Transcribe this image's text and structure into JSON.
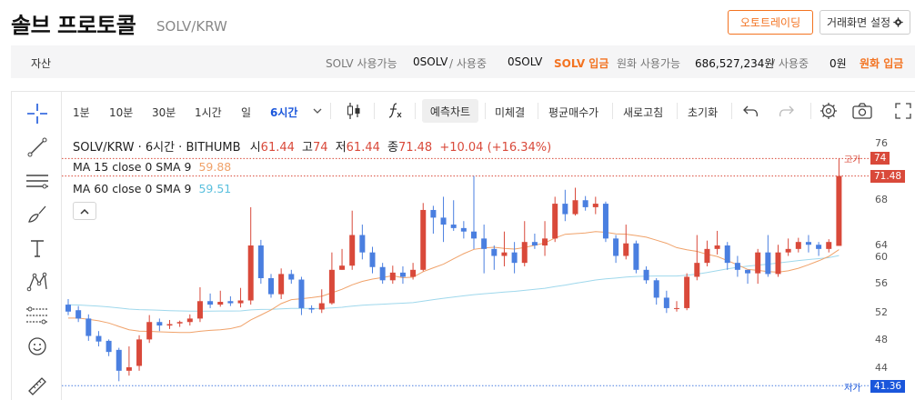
{
  "header": {
    "coin_name": "솔브 프로토콜",
    "pair": "SOLV/KRW",
    "auto_trade_label": "오토트레이딩",
    "settings_label": "거래화면 설정"
  },
  "asset_bar": {
    "label": "자산",
    "solv_available_label": "SOLV 사용가능",
    "solv_available": "0SOLV",
    "solv_in_use_label": "/ 사용중",
    "solv_in_use": "0SOLV",
    "solv_deposit": "SOLV 입금",
    "krw_available_label": "원화 사용가능",
    "krw_available": "686,527,234원",
    "krw_in_use_label": "/ 사용중",
    "krw_in_use": "0원",
    "krw_deposit": "원화 입금"
  },
  "toolbar": {
    "intervals": [
      "1분",
      "10분",
      "30분",
      "1시간",
      "일",
      "6시간"
    ],
    "active_interval": "6시간",
    "forecast": "예측차트",
    "unfilled": "미체결",
    "avg_buy": "평균매수가",
    "refresh": "새로고침",
    "reset": "초기화"
  },
  "legend": {
    "title": "SOLV/KRW · 6시간 · BITHUMB",
    "open_label": "시",
    "open": "61.44",
    "high_label": "고",
    "high": "74",
    "low_label": "저",
    "low": "61.44",
    "close_label": "종",
    "close": "71.48",
    "change": "+10.04 (+16.34%)",
    "ma15_label": "MA 15 close 0 SMA 9",
    "ma15_value": "59.88",
    "ma60_label": "MA 60 close 0 SMA 9",
    "ma60_value": "59.51"
  },
  "price_axis": {
    "ticks": [
      "76",
      "72",
      "68",
      "64",
      "60",
      "56",
      "52",
      "48",
      "44"
    ],
    "high_tag": "고가",
    "high_value": "74",
    "current_value": "71.48",
    "low_tag": "저가",
    "low_value": "41.36"
  },
  "colors": {
    "up": "#d9493a",
    "down": "#4a7fe0",
    "ma15": "#f0a26a",
    "ma60": "#9fd8ec",
    "accent": "#f37321",
    "active": "#1a56db"
  },
  "chart_data": {
    "type": "candlestick",
    "ylim": [
      40.5,
      78
    ],
    "candles": [
      [
        53,
        52,
        53.8,
        51.5
      ],
      [
        52.2,
        51,
        52.8,
        50.5
      ],
      [
        51,
        48.5,
        51.6,
        47.8
      ],
      [
        48.5,
        47.7,
        49.2,
        47
      ],
      [
        47.8,
        46.2,
        48,
        45.6
      ],
      [
        46.5,
        43.5,
        46.8,
        42
      ],
      [
        43.5,
        44,
        47,
        42.8
      ],
      [
        44.2,
        48,
        48.6,
        43.5
      ],
      [
        48,
        50.5,
        51.5,
        47.5
      ],
      [
        50.5,
        50,
        51,
        49.2
      ],
      [
        50,
        50.2,
        50.8,
        49.5
      ],
      [
        50.3,
        50.5,
        50.7,
        49.8
      ],
      [
        50.5,
        51,
        51.6,
        50
      ],
      [
        51,
        53.5,
        55.5,
        50.5
      ],
      [
        53.5,
        53,
        54.6,
        52.5
      ],
      [
        53,
        53.4,
        55,
        52.7
      ],
      [
        53.5,
        53.2,
        54.2,
        52.8
      ],
      [
        53.2,
        53.6,
        55.4,
        52.6
      ],
      [
        53.6,
        61.5,
        67,
        53
      ],
      [
        61.5,
        56.8,
        62.3,
        56
      ],
      [
        56.8,
        54.5,
        57.4,
        54
      ],
      [
        54.5,
        57.4,
        58.2,
        53.8
      ],
      [
        57.4,
        56.6,
        58,
        56
      ],
      [
        56.6,
        52.5,
        57,
        51.5
      ],
      [
        52.5,
        52.3,
        52.9,
        51.8
      ],
      [
        52.3,
        53.2,
        55.2,
        51.8
      ],
      [
        53.2,
        58,
        60.5,
        53
      ],
      [
        58,
        58.6,
        61,
        58
      ],
      [
        58.6,
        63,
        66.5,
        58
      ],
      [
        63,
        60.5,
        64.5,
        59.5
      ],
      [
        60.5,
        58.4,
        61.3,
        57.5
      ],
      [
        58.4,
        56.5,
        59,
        56
      ],
      [
        56.5,
        57.6,
        58.6,
        56
      ],
      [
        57.6,
        57,
        58.5,
        56
      ],
      [
        57,
        58,
        59,
        56.6
      ],
      [
        58,
        66.6,
        67.6,
        57.8
      ],
      [
        66.6,
        65.5,
        67.2,
        63.2
      ],
      [
        65.5,
        64.5,
        68.5,
        62
      ],
      [
        64.5,
        64,
        68,
        63.6
      ],
      [
        64,
        63.5,
        65,
        62.5
      ],
      [
        63.5,
        62.5,
        71.5,
        61
      ],
      [
        62.5,
        61,
        64.5,
        57.5
      ],
      [
        61,
        60,
        61.5,
        58
      ],
      [
        60,
        60.5,
        63.5,
        58.5
      ],
      [
        60.5,
        59,
        62,
        57.5
      ],
      [
        59,
        62,
        65,
        58.5
      ],
      [
        62,
        61.5,
        63.2,
        61
      ],
      [
        61.5,
        62.5,
        65,
        60
      ],
      [
        62.5,
        67.5,
        68.5,
        62
      ],
      [
        67.5,
        66,
        69.5,
        65
      ],
      [
        66,
        68,
        69.8,
        65.8
      ],
      [
        68,
        67,
        68.6,
        66.5
      ],
      [
        67,
        67.5,
        68.5,
        66
      ],
      [
        67.5,
        62.5,
        67.8,
        62
      ],
      [
        62.5,
        60,
        63,
        59
      ],
      [
        60,
        61.8,
        64.5,
        59.5
      ],
      [
        61.8,
        58,
        62.2,
        57.5
      ],
      [
        58,
        56.5,
        58.5,
        56
      ],
      [
        56.5,
        54,
        56.8,
        53
      ],
      [
        54,
        52.5,
        55,
        51.8
      ],
      [
        52.5,
        52.5,
        53.5,
        52
      ],
      [
        52.5,
        57,
        57.5,
        52.2
      ],
      [
        57,
        59,
        63,
        56.5
      ],
      [
        59,
        61,
        62.2,
        58.5
      ],
      [
        61,
        61.5,
        63.6,
        60.2
      ],
      [
        61.5,
        59,
        62,
        58
      ],
      [
        59,
        58,
        60,
        57
      ],
      [
        58,
        57.5,
        58,
        56
      ],
      [
        57.5,
        60.5,
        61,
        56
      ],
      [
        60.5,
        57.4,
        63,
        57
      ],
      [
        57.4,
        60.5,
        61.6,
        57
      ],
      [
        60.5,
        61,
        62.5,
        60
      ],
      [
        61,
        62,
        62.6,
        60.5
      ],
      [
        62,
        61.6,
        63,
        60.5
      ],
      [
        61.6,
        61,
        62,
        60
      ],
      [
        61,
        62,
        62.4,
        60.5
      ],
      [
        61.44,
        71.48,
        74,
        61.44
      ]
    ]
  }
}
